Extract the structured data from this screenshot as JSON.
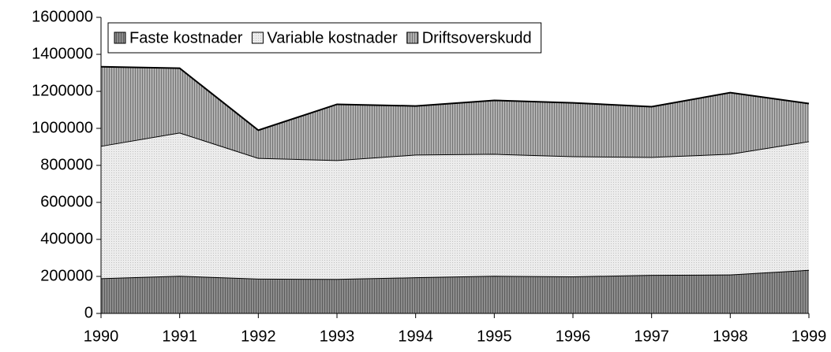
{
  "chart_data": {
    "type": "stacked_area",
    "categories": [
      "1990",
      "1991",
      "1992",
      "1993",
      "1994",
      "1995",
      "1996",
      "1997",
      "1998",
      "1999"
    ],
    "series": [
      {
        "name": "Faste kostnader",
        "color": "#8c8c8c",
        "values": [
          190000,
          203000,
          188000,
          186000,
          195000,
          203000,
          200000,
          208000,
          210000,
          235000
        ]
      },
      {
        "name": "Variable kostnader",
        "color": "#ececec",
        "values": [
          715000,
          774000,
          652000,
          642000,
          663000,
          659000,
          649000,
          637000,
          652000,
          695000
        ]
      },
      {
        "name": "Driftsoverskudd",
        "color": "#b0b0b0",
        "values": [
          428000,
          348000,
          150000,
          302000,
          263000,
          289000,
          289000,
          272000,
          331000,
          204000
        ]
      }
    ],
    "ylim": [
      0,
      1600000
    ],
    "yticks": [
      0,
      200000,
      400000,
      600000,
      800000,
      1000000,
      1200000,
      1400000,
      1600000
    ],
    "legend": "top-left"
  }
}
